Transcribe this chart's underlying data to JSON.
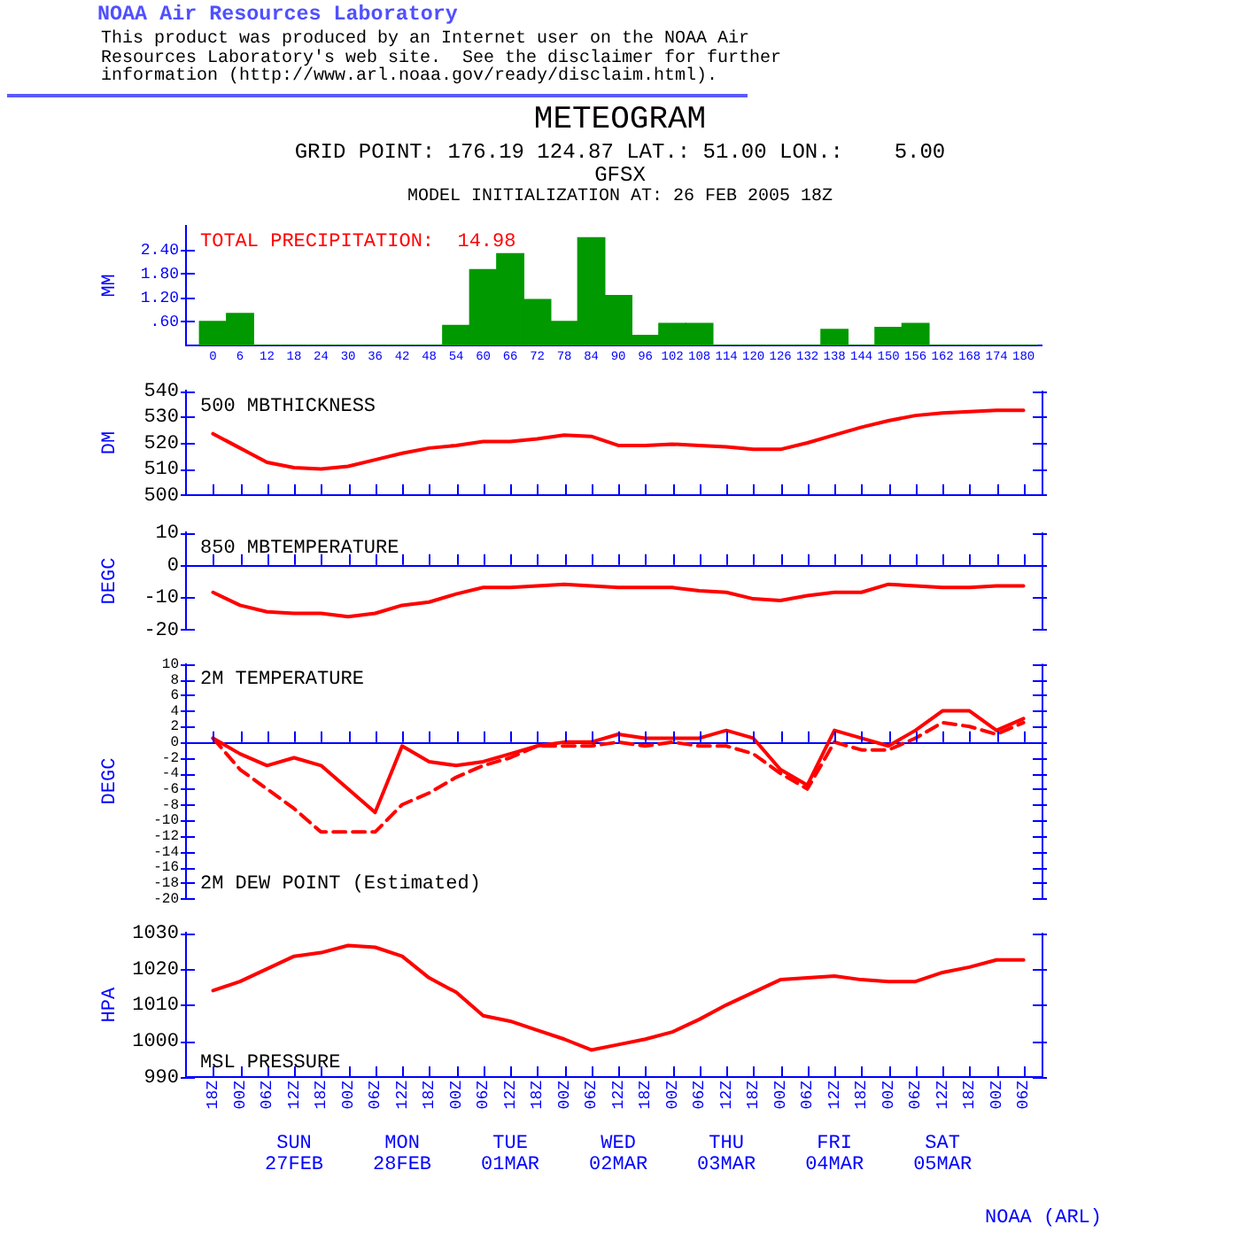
{
  "chart_data": [
    {
      "type": "other",
      "title": "NOAA Air Resources Laboratory",
      "annotations": [
        "This product was produced by an Internet user on the NOAA Air Resources Laboratory's web site.  See the disclaimer for further information (http://www.arl.noaa.gov/ready/disclaim.html).",
        "NOAA (ARL)"
      ]
    },
    {
      "type": "bar",
      "title": "METEOGRAM",
      "subtitle": "GRID POINT: 176.19 124.87 LAT.: 51.00 LON.:    5.00\nGFSX\nMODEL INITIALIZATION AT: 26 FEB 2005 18Z",
      "ylabel": "MM",
      "annotations": [
        "TOTAL PRECIPITATION:  14.98"
      ],
      "x": [
        0,
        6,
        12,
        18,
        24,
        30,
        36,
        42,
        48,
        54,
        60,
        66,
        72,
        78,
        84,
        90,
        96,
        102,
        108,
        114,
        120,
        126,
        132,
        138,
        144,
        150,
        156,
        162,
        168,
        174,
        180
      ],
      "values": [
        0.6,
        0.8,
        0,
        0,
        0,
        0,
        0,
        0,
        0,
        0.5,
        1.9,
        2.3,
        1.15,
        0.6,
        2.7,
        1.25,
        0.25,
        0.55,
        0.55,
        0,
        0,
        0,
        0,
        0.4,
        0,
        0.45,
        0.55,
        0,
        0,
        0,
        0
      ],
      "color": "#009900",
      "xlim": [
        -6,
        184
      ],
      "xticks": [
        0,
        6,
        12,
        18,
        24,
        30,
        36,
        42,
        48,
        54,
        60,
        66,
        72,
        78,
        84,
        90,
        96,
        102,
        108,
        114,
        120,
        126,
        132,
        138,
        144,
        150,
        156,
        162,
        168,
        174,
        180
      ],
      "ylim": [
        0,
        3
      ],
      "yticks": [
        {
          "value": 0.6,
          "label": ".60"
        },
        {
          "value": 1.2,
          "label": "1.20"
        },
        {
          "value": 1.8,
          "label": "1.80"
        },
        {
          "value": 2.4,
          "label": "2.40"
        }
      ]
    },
    {
      "type": "line",
      "title": "500 MBTHICKNESS",
      "ylabel": "DM",
      "tick_labels": "y",
      "categories": [
        null,
        null,
        null,
        null,
        null,
        null,
        null,
        null,
        null,
        null,
        null,
        null,
        null,
        null,
        null,
        null,
        null,
        null,
        null,
        null,
        null,
        null,
        null,
        null,
        null,
        null,
        null,
        null,
        null,
        null,
        null
      ],
      "values": [
        523.5,
        518,
        512.5,
        510.5,
        510,
        511,
        513.5,
        516,
        518,
        519,
        520.5,
        520.5,
        521.5,
        523,
        522.5,
        519,
        519,
        519.5,
        519,
        518.5,
        517.5,
        517.5,
        520,
        523,
        526,
        528.5,
        530.5,
        531.5,
        532,
        532.5,
        532.5
      ],
      "color": "#ff0000",
      "ylim": [
        500,
        540
      ],
      "yticks": [
        500,
        510,
        520,
        530,
        540
      ]
    },
    {
      "type": "line",
      "title": "850 MBTEMPERATURE",
      "ylabel": "DEGC",
      "tick_labels": "y",
      "categories": [
        null,
        null,
        null,
        null,
        null,
        null,
        null,
        null,
        null,
        null,
        null,
        null,
        null,
        null,
        null,
        null,
        null,
        null,
        null,
        null,
        null,
        null,
        null,
        null,
        null,
        null,
        null,
        null,
        null,
        null,
        null
      ],
      "values": [
        -8.5,
        -12.5,
        -14.5,
        -15,
        -15,
        -16,
        -15,
        -12.5,
        -11.5,
        -9,
        -7,
        -7,
        -6.5,
        -6,
        -6.5,
        -7,
        -7,
        -7,
        -8,
        -8.5,
        -10.5,
        -11,
        -9.5,
        -8.5,
        -8.5,
        -6,
        -6.5,
        -7,
        -7,
        -6.5,
        -6.5
      ],
      "color": "#ff0000",
      "ylim": [
        -20,
        10
      ],
      "yticks": [
        -20,
        -10,
        0,
        10
      ],
      "ref_lines": [
        {
          "axis": "y",
          "value": 0,
          "color": "#0000ff"
        }
      ]
    },
    {
      "type": "line",
      "title": "2M TEMPERATURE",
      "ylabel": "DEGC",
      "tick_labels": "y",
      "annotations": [
        "2M DEW POINT (Estimated)"
      ],
      "categories": [
        null,
        null,
        null,
        null,
        null,
        null,
        null,
        null,
        null,
        null,
        null,
        null,
        null,
        null,
        null,
        null,
        null,
        null,
        null,
        null,
        null,
        null,
        null,
        null,
        null,
        null,
        null,
        null,
        null,
        null,
        null
      ],
      "series": [
        {
          "color": "#ff0000",
          "values": [
            0.5,
            -1.5,
            -3,
            -2,
            -3,
            -6,
            -9,
            -0.5,
            -2.5,
            -3,
            -2.5,
            -1.5,
            -0.5,
            0,
            0,
            1,
            0.5,
            0.5,
            0.5,
            1.5,
            0.5,
            -3.5,
            -5.5,
            1.5,
            0.5,
            -0.5,
            1.5,
            4,
            4,
            1.5,
            3
          ]
        },
        {
          "color": "#ff0000",
          "line_style": "dashed",
          "values": [
            0.5,
            -3.5,
            -6,
            -8.5,
            -11.5,
            -11.5,
            -11.5,
            -8,
            -6.5,
            -4.5,
            -3,
            -2,
            -0.5,
            -0.5,
            -0.5,
            0,
            -0.5,
            0,
            -0.5,
            -0.5,
            -1.5,
            -4,
            -6,
            0,
            -1,
            -1,
            0.5,
            2.5,
            2,
            1,
            2.5
          ]
        }
      ],
      "ylim": [
        -20,
        10
      ],
      "yticks": [
        10,
        8,
        6,
        4,
        2,
        0,
        -2,
        -4,
        -6,
        -8,
        -10,
        -12,
        -14,
        -16,
        -18,
        -20
      ],
      "ref_lines": [
        {
          "axis": "y",
          "value": 0,
          "color": "#0000ff"
        }
      ]
    },
    {
      "type": "line",
      "title": "MSL PRESSURE",
      "ylabel": "HPA",
      "x": [
        "2005-02-26T18:00",
        "2005-02-27T00:00",
        "2005-02-27T06:00",
        "2005-02-27T12:00",
        "2005-02-27T18:00",
        "2005-02-28T00:00",
        "2005-02-28T06:00",
        "2005-02-28T12:00",
        "2005-02-28T18:00",
        "2005-03-01T00:00",
        "2005-03-01T06:00",
        "2005-03-01T12:00",
        "2005-03-01T18:00",
        "2005-03-02T00:00",
        "2005-03-02T06:00",
        "2005-03-02T12:00",
        "2005-03-02T18:00",
        "2005-03-03T00:00",
        "2005-03-03T06:00",
        "2005-03-03T12:00",
        "2005-03-03T18:00",
        "2005-03-04T00:00",
        "2005-03-04T06:00",
        "2005-03-04T12:00",
        "2005-03-04T18:00",
        "2005-03-05T00:00",
        "2005-03-05T06:00",
        "2005-03-05T12:00",
        "2005-03-05T18:00",
        "2005-03-06T00:00",
        "2005-03-06T06:00"
      ],
      "values": [
        1014,
        1016.5,
        1020,
        1023.5,
        1024.5,
        1026.5,
        1026,
        1023.5,
        1017.5,
        1013.5,
        1007,
        1005.5,
        1003,
        1000.5,
        997.5,
        999,
        1000.5,
        1002.5,
        1006,
        1010,
        1013.5,
        1017,
        1017.5,
        1018,
        1017,
        1016.5,
        1016.5,
        1019,
        1020.5,
        1022.5,
        1022.5
      ],
      "color": "#ff0000",
      "xlim": [
        "2005-02-26T12:00",
        "2005-03-06T10:00"
      ],
      "xticks": [
        {
          "value": "2005-02-26T18:00",
          "label": "18Z"
        },
        {
          "value": "2005-02-27T00:00",
          "label": "00Z"
        },
        {
          "value": "2005-02-27T06:00",
          "label": "06Z"
        },
        {
          "value": "2005-02-27T12:00",
          "label": "12Z"
        },
        {
          "value": "2005-02-27T18:00",
          "label": "18Z"
        },
        {
          "value": "2005-02-28T00:00",
          "label": "00Z"
        },
        {
          "value": "2005-02-28T06:00",
          "label": "06Z"
        },
        {
          "value": "2005-02-28T12:00",
          "label": "12Z"
        },
        {
          "value": "2005-02-28T18:00",
          "label": "18Z"
        },
        {
          "value": "2005-03-01T00:00",
          "label": "00Z"
        },
        {
          "value": "2005-03-01T06:00",
          "label": "06Z"
        },
        {
          "value": "2005-03-01T12:00",
          "label": "12Z"
        },
        {
          "value": "2005-03-01T18:00",
          "label": "18Z"
        },
        {
          "value": "2005-03-02T00:00",
          "label": "00Z"
        },
        {
          "value": "2005-03-02T06:00",
          "label": "06Z"
        },
        {
          "value": "2005-03-02T12:00",
          "label": "12Z"
        },
        {
          "value": "2005-03-02T18:00",
          "label": "18Z"
        },
        {
          "value": "2005-03-03T00:00",
          "label": "00Z"
        },
        {
          "value": "2005-03-03T06:00",
          "label": "06Z"
        },
        {
          "value": "2005-03-03T12:00",
          "label": "12Z"
        },
        {
          "value": "2005-03-03T18:00",
          "label": "18Z"
        },
        {
          "value": "2005-03-04T00:00",
          "label": "00Z"
        },
        {
          "value": "2005-03-04T06:00",
          "label": "06Z"
        },
        {
          "value": "2005-03-04T12:00",
          "label": "12Z"
        },
        {
          "value": "2005-03-04T18:00",
          "label": "18Z"
        },
        {
          "value": "2005-03-05T00:00",
          "label": "00Z"
        },
        {
          "value": "2005-03-05T06:00",
          "label": "06Z"
        },
        {
          "value": "2005-03-05T12:00",
          "label": "12Z"
        },
        {
          "value": "2005-03-05T18:00",
          "label": "18Z"
        },
        {
          "value": "2005-03-06T00:00",
          "label": "00Z"
        },
        {
          "value": "2005-03-06T06:00",
          "label": "06Z"
        }
      ],
      "x2lim": [
        "2005-02-26T12:00",
        "2005-03-06T10:00"
      ],
      "x2ticks": [
        {
          "value": "2005-02-27T12:00",
          "label": "SUN 27FEB"
        },
        {
          "value": "2005-02-28T12:00",
          "label": "MON 28FEB"
        },
        {
          "value": "2005-03-01T12:00",
          "label": "TUE 01MAR"
        },
        {
          "value": "2005-03-02T12:00",
          "label": "WED 02MAR"
        },
        {
          "value": "2005-03-03T12:00",
          "label": "THU 03MAR"
        },
        {
          "value": "2005-03-04T12:00",
          "label": "FRI 04MAR"
        },
        {
          "value": "2005-03-05T12:00",
          "label": "SAT 05MAR"
        }
      ],
      "ylim": [
        990,
        1030
      ],
      "yticks": [
        990,
        1000,
        1010,
        1020,
        1030
      ]
    }
  ]
}
